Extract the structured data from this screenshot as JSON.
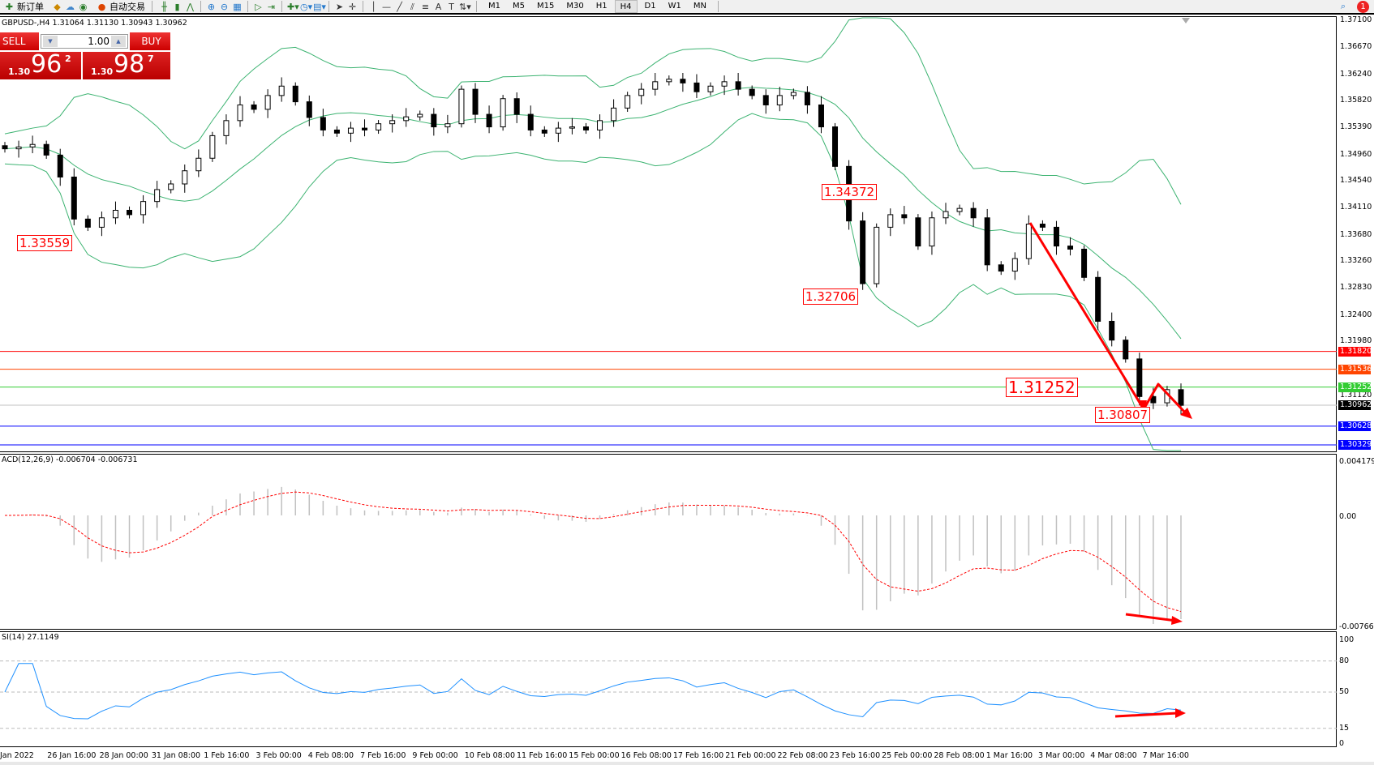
{
  "toolbar": {
    "new_order": "新订单",
    "auto_trading": "自动交易",
    "timeframes": [
      "M1",
      "M5",
      "M15",
      "M30",
      "H1",
      "H4",
      "D1",
      "W1",
      "MN"
    ],
    "active_timeframe": "H4",
    "notification_count": "1"
  },
  "chart": {
    "header": "GBPUSD-,H4  1.31064 1.31130 1.30943 1.30962",
    "trade_panel": {
      "sell": "SELL",
      "buy": "BUY",
      "lot": "1.00",
      "sell_small": "1.30",
      "sell_big": "96",
      "sell_pip": "2",
      "buy_small": "1.30",
      "buy_big": "98",
      "buy_pip": "7"
    },
    "annotations": [
      "1.33559",
      "1.34372",
      "1.32706",
      "1.31252",
      "1.30807"
    ],
    "price_ticks": [
      "1.37100",
      "1.36670",
      "1.36240",
      "1.35820",
      "1.35390",
      "1.34960",
      "1.34540",
      "1.34110",
      "1.33680",
      "1.33260",
      "1.32830",
      "1.32400",
      "1.31980",
      "1.31120"
    ],
    "levels": [
      {
        "price": "1.31820",
        "color": "#ff0000"
      },
      {
        "price": "1.31536",
        "color": "#ff4500"
      },
      {
        "price": "1.31252",
        "color": "#32cd32"
      },
      {
        "price": "1.30962",
        "color": "#000000",
        "line": "#c0c0c0"
      },
      {
        "price": "1.30628",
        "color": "#0000ff"
      },
      {
        "price": "1.30329",
        "color": "#0000ff"
      }
    ],
    "band_color": "#3cb371"
  },
  "macd": {
    "header": "ACD(12,26,9) -0.006704 -0.006731",
    "ticks": [
      "0.004179",
      "0.00",
      "-0.007666"
    ],
    "signal_color": "#ff0000",
    "hist_color": "#c0c0c0"
  },
  "rsi": {
    "header": "SI(14) 27.1149",
    "ticks": [
      "100",
      "80",
      "50",
      "15",
      "0"
    ],
    "line_color": "#1e90ff"
  },
  "time_labels": [
    "Jan 2022",
    "26 Jan 16:00",
    "28 Jan 00:00",
    "31 Jan 08:00",
    "1 Feb 16:00",
    "3 Feb 00:00",
    "4 Feb 08:00",
    "7 Feb 16:00",
    "9 Feb 00:00",
    "10 Feb 08:00",
    "11 Feb 16:00",
    "15 Feb 00:00",
    "16 Feb 08:00",
    "17 Feb 16:00",
    "21 Feb 00:00",
    "22 Feb 08:00",
    "23 Feb 16:00",
    "25 Feb 00:00",
    "28 Feb 08:00",
    "1 Mar 16:00",
    "3 Mar 00:00",
    "4 Mar 08:00",
    "7 Mar 16:00"
  ],
  "chart_data": {
    "type": "candlestick",
    "symbol": "GBPUSD-",
    "timeframe": "H4",
    "ylim": [
      1.3027,
      1.371
    ],
    "closes": [
      1.3505,
      1.3508,
      1.3512,
      1.3495,
      1.346,
      1.3393,
      1.338,
      1.3395,
      1.3407,
      1.34,
      1.3421,
      1.344,
      1.3449,
      1.347,
      1.349,
      1.3526,
      1.355,
      1.3575,
      1.3568,
      1.359,
      1.3605,
      1.358,
      1.3555,
      1.3535,
      1.353,
      1.3538,
      1.3535,
      1.3545,
      1.355,
      1.3556,
      1.356,
      1.354,
      1.3545,
      1.36,
      1.356,
      1.354,
      1.3585,
      1.356,
      1.3535,
      1.353,
      1.3538,
      1.354,
      1.3535,
      1.355,
      1.357,
      1.359,
      1.36,
      1.3612,
      1.3616,
      1.361,
      1.3596,
      1.3605,
      1.3612,
      1.36,
      1.359,
      1.3575,
      1.359,
      1.3595,
      1.3575,
      1.354,
      1.3477,
      1.339,
      1.329,
      1.338,
      1.34,
      1.3395,
      1.335,
      1.3395,
      1.3405,
      1.341,
      1.3395,
      1.332,
      1.331,
      1.333,
      1.3385,
      1.338,
      1.335,
      1.3345,
      1.33,
      1.323,
      1.32,
      1.317,
      1.311,
      1.31,
      1.3121,
      1.3096
    ]
  }
}
